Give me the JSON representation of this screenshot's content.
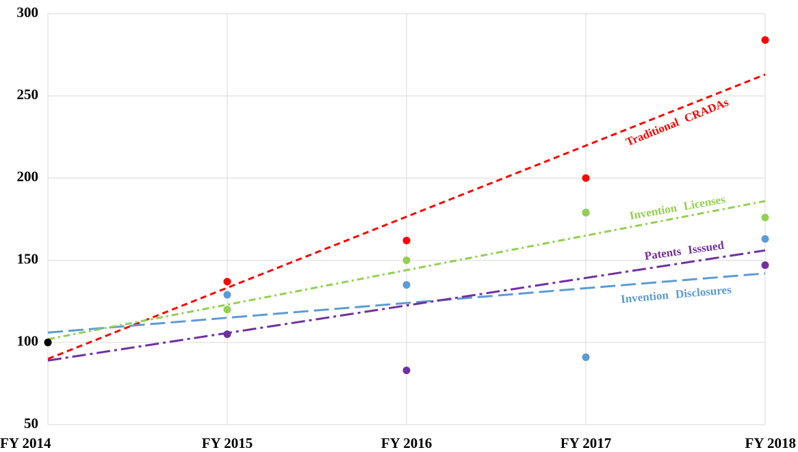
{
  "chart_data": {
    "type": "scatter",
    "categories": [
      "FY 2014",
      "FY 2015",
      "FY 2016",
      "FY 2017",
      "FY 2018"
    ],
    "ylim": [
      50,
      300
    ],
    "yticks": [
      50,
      100,
      150,
      200,
      250,
      300
    ],
    "grid": true,
    "series": [
      {
        "name": "Traditional CRADAs",
        "color": "#ff0000",
        "dash": "9 6",
        "values": [
          100,
          137,
          162,
          200,
          284
        ],
        "trend": [
          90,
          263
        ]
      },
      {
        "name": "Invention Disclosures",
        "color": "#5b9bd5",
        "dash": "22 8",
        "values": [
          100,
          129,
          135,
          91,
          163
        ],
        "trend": [
          106,
          142
        ]
      },
      {
        "name": "Patents Isssued",
        "color": "#7030a0",
        "dash": "20 6 4 6",
        "values": [
          100,
          105,
          83,
          179,
          147
        ],
        "trend": [
          89,
          156
        ]
      },
      {
        "name": "Invention Licenses",
        "color": "#92d050",
        "dash": "10 5 3 5",
        "values": [
          100,
          120,
          150,
          179,
          176
        ],
        "trend": [
          102,
          186
        ]
      }
    ],
    "highlight": {
      "value": 100,
      "color": "#000000"
    }
  }
}
